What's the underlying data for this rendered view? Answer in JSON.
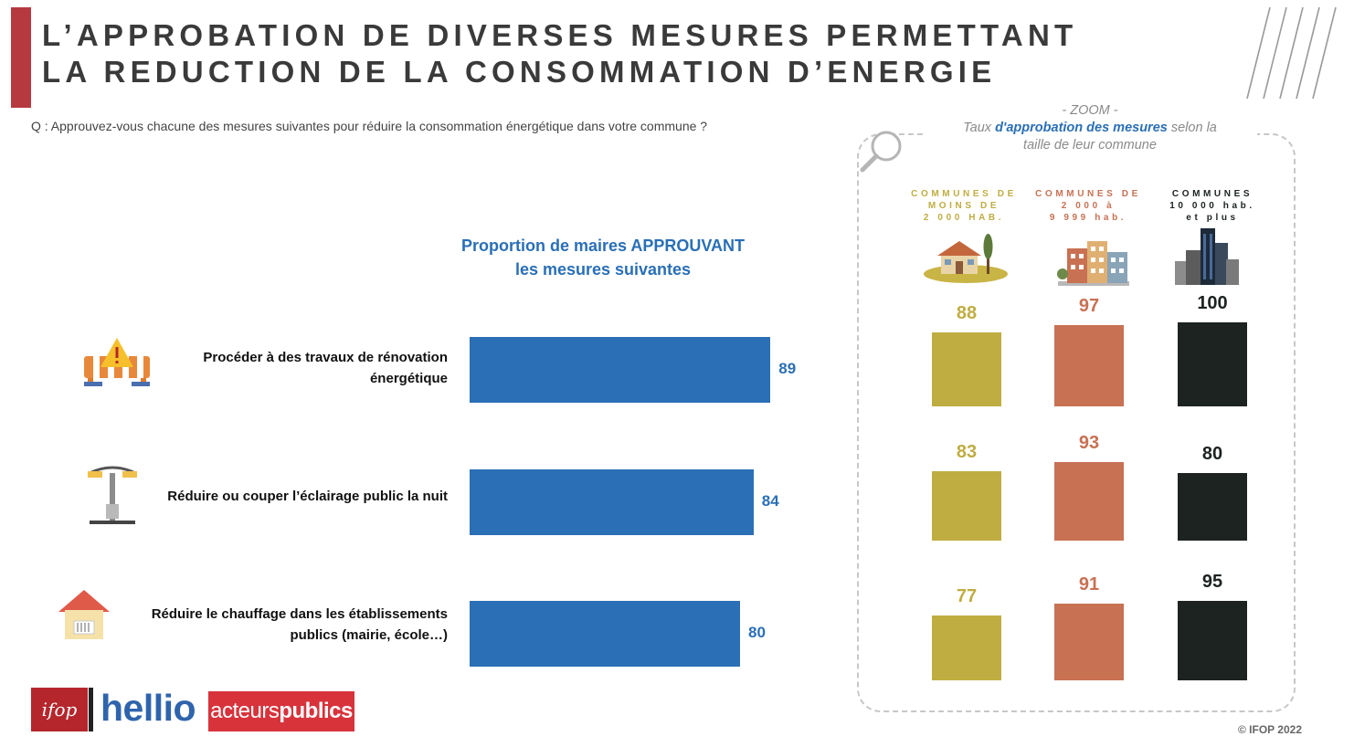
{
  "header": {
    "title_line1": "L’APPROBATION DE DIVERSES MESURES PERMETTANT",
    "title_line2": "LA REDUCTION DE LA CONSOMMATION D’ENERGIE",
    "question": "Q : Approuvez-vous chacune des mesures suivantes pour réduire la consommation énergétique dans votre commune ?"
  },
  "chart_data": [
    {
      "type": "bar",
      "orientation": "horizontal",
      "title": "Proportion de maires APPROUVANT les mesures suivantes",
      "title_line1": "Proportion de maires APPROUVANT",
      "title_line2": "les mesures suivantes",
      "categories": [
        "Procéder à des travaux de rénovation énergétique",
        "Réduire ou couper l’éclairage public la nuit",
        "Réduire le chauffage dans les établissements publics (mairie, école…)"
      ],
      "category_lines": [
        [
          "Procéder à des travaux de rénovation",
          "énergétique"
        ],
        [
          "Réduire ou couper l’éclairage public la nuit"
        ],
        [
          "Réduire le chauffage dans les établissements",
          "publics (mairie, école…)"
        ]
      ],
      "values": [
        89,
        84,
        80
      ],
      "xlim": [
        0,
        100
      ],
      "grid": false,
      "color": "#2b6fb6"
    },
    {
      "type": "bar",
      "title": "Taux d'approbation des mesures selon la taille de leur commune",
      "zoom_label": "- ZOOM -",
      "title_parts": [
        "Taux ",
        "d'approbation des mesures",
        " selon la",
        "taille de leur commune"
      ],
      "categories": [
        "Procéder à des travaux de rénovation énergétique",
        "Réduire ou couper l’éclairage public la nuit",
        "Réduire le chauffage dans les établissements publics (mairie, école…)"
      ],
      "series": [
        {
          "name": "COMMUNES DE MOINS DE 2 000 HAB.",
          "label": "COMMUNES DE\nMOINS DE\n2 000 HAB.",
          "values": [
            88,
            83,
            77
          ],
          "color": "#bfad42",
          "icon": "village-icon"
        },
        {
          "name": "COMMUNES DE 2 000 à 9 999 hab.",
          "label": "COMMUNES DE\n2 000 à\n9 999 hab.",
          "values": [
            97,
            93,
            91
          ],
          "color": "#c87153",
          "icon": "town-icon"
        },
        {
          "name": "COMMUNES 10 000 hab. et plus",
          "label": "COMMUNES\n10 000 hab.\net plus",
          "values": [
            100,
            80,
            95
          ],
          "color": "#1c2321",
          "icon": "city-icon"
        }
      ],
      "ylim": [
        0,
        100
      ]
    }
  ],
  "footer": {
    "copyright": "© IFOP 2022",
    "logos": [
      "ifop",
      "hellio",
      "acteurspublics"
    ],
    "logo_ifop": "ifop",
    "logo_hellio": "hellio",
    "logo_ap_a": "acteurs",
    "logo_ap_b": "publics"
  },
  "icons": {
    "row_icons": [
      "roadwork-barrier-icon",
      "street-lamp-icon",
      "heated-house-icon"
    ],
    "zoom_icon": "magnifier-icon"
  }
}
